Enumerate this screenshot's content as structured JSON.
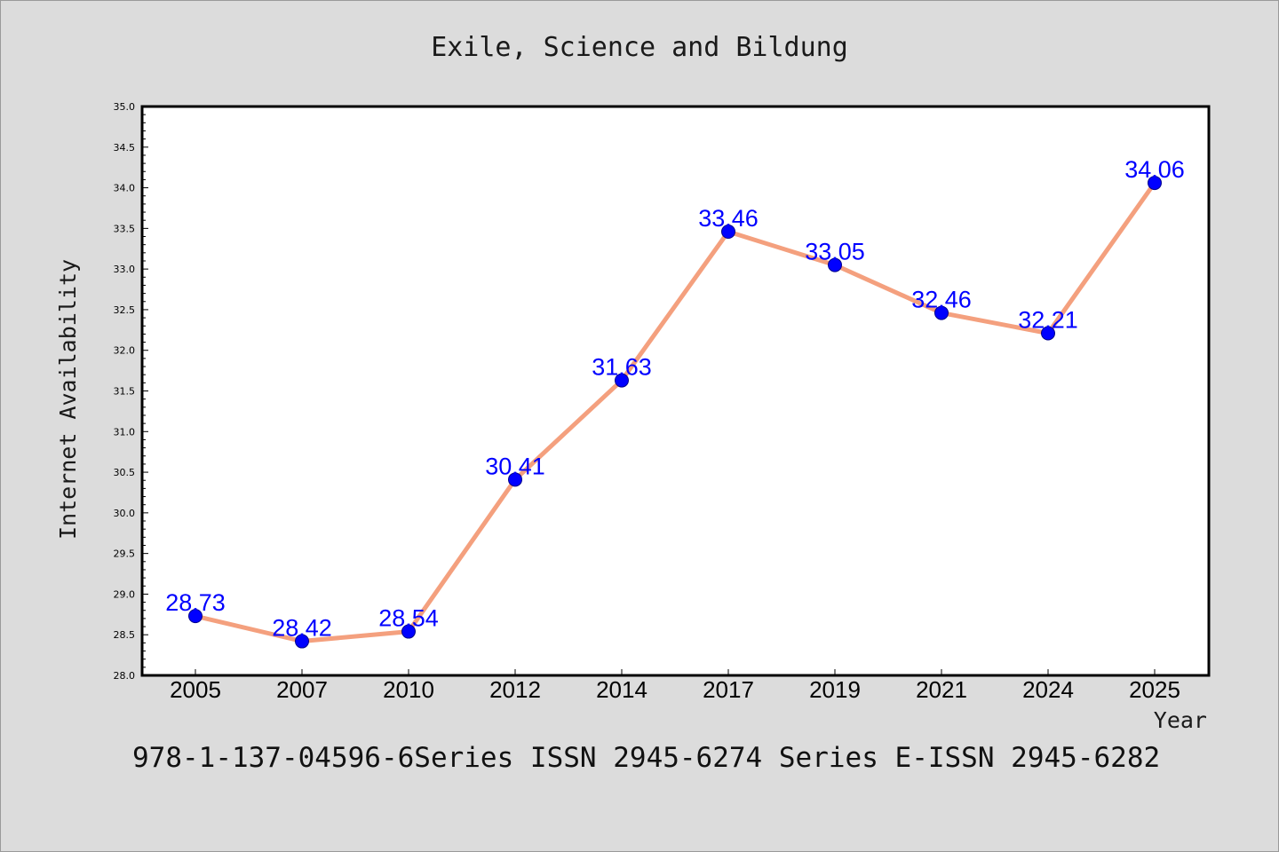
{
  "chart_data": {
    "type": "line",
    "title": "Exile, Science and Bildung",
    "xlabel": "Year",
    "ylabel": "Internet Availability",
    "categories": [
      "2005",
      "2007",
      "2010",
      "2012",
      "2014",
      "2017",
      "2019",
      "2021",
      "2024",
      "2025"
    ],
    "series": [
      {
        "values": [
          28.73,
          28.42,
          28.54,
          30.41,
          31.63,
          33.46,
          33.05,
          32.46,
          32.21,
          34.06
        ],
        "labels": [
          "28.73",
          "28.42",
          "28.54",
          "30.41",
          "31.63",
          "33.46",
          "33.05",
          "32.46",
          "32.21",
          "34.06"
        ]
      }
    ],
    "ylim": [
      28.0,
      35.0
    ],
    "yticks": [
      "28.0",
      "28.5",
      "29.0",
      "29.5",
      "30.0",
      "30.5",
      "31.0",
      "31.5",
      "32.0",
      "32.5",
      "33.0",
      "33.5",
      "34.0",
      "34.5",
      "35.0"
    ],
    "grid": false,
    "colors": {
      "line": "#f4a07e",
      "marker": "#0000ff",
      "label": "#0000ff",
      "background": "#dcdcdc",
      "plot_background": "#ffffff"
    }
  },
  "footer": {
    "text": "978-1-137-04596-6Series ISSN 2945-6274 Series E-ISSN 2945-6282"
  }
}
